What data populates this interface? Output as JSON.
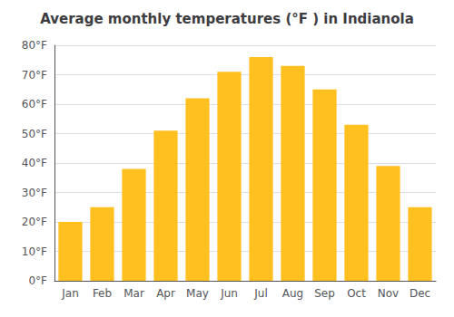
{
  "chart_data": {
    "type": "bar",
    "title": "Average monthly temperatures (°F ) in Indianola",
    "categories": [
      "Jan",
      "Feb",
      "Mar",
      "Apr",
      "May",
      "Jun",
      "Jul",
      "Aug",
      "Sep",
      "Oct",
      "Nov",
      "Dec"
    ],
    "values": [
      20,
      25,
      38,
      51,
      62,
      71,
      76,
      73,
      65,
      53,
      39,
      25
    ],
    "color": "#FFC020",
    "ylim": [
      0,
      80
    ],
    "yticks": [
      {
        "value": 0,
        "label": "0°F"
      },
      {
        "value": 10,
        "label": "10°F"
      },
      {
        "value": 20,
        "label": "20°F"
      },
      {
        "value": 30,
        "label": "30°F"
      },
      {
        "value": 40,
        "label": "40°F"
      },
      {
        "value": 50,
        "label": "50°F"
      },
      {
        "value": 60,
        "label": "60°F"
      },
      {
        "value": 70,
        "label": "70°F"
      },
      {
        "value": 80,
        "label": "80°F"
      }
    ],
    "grid": true
  }
}
